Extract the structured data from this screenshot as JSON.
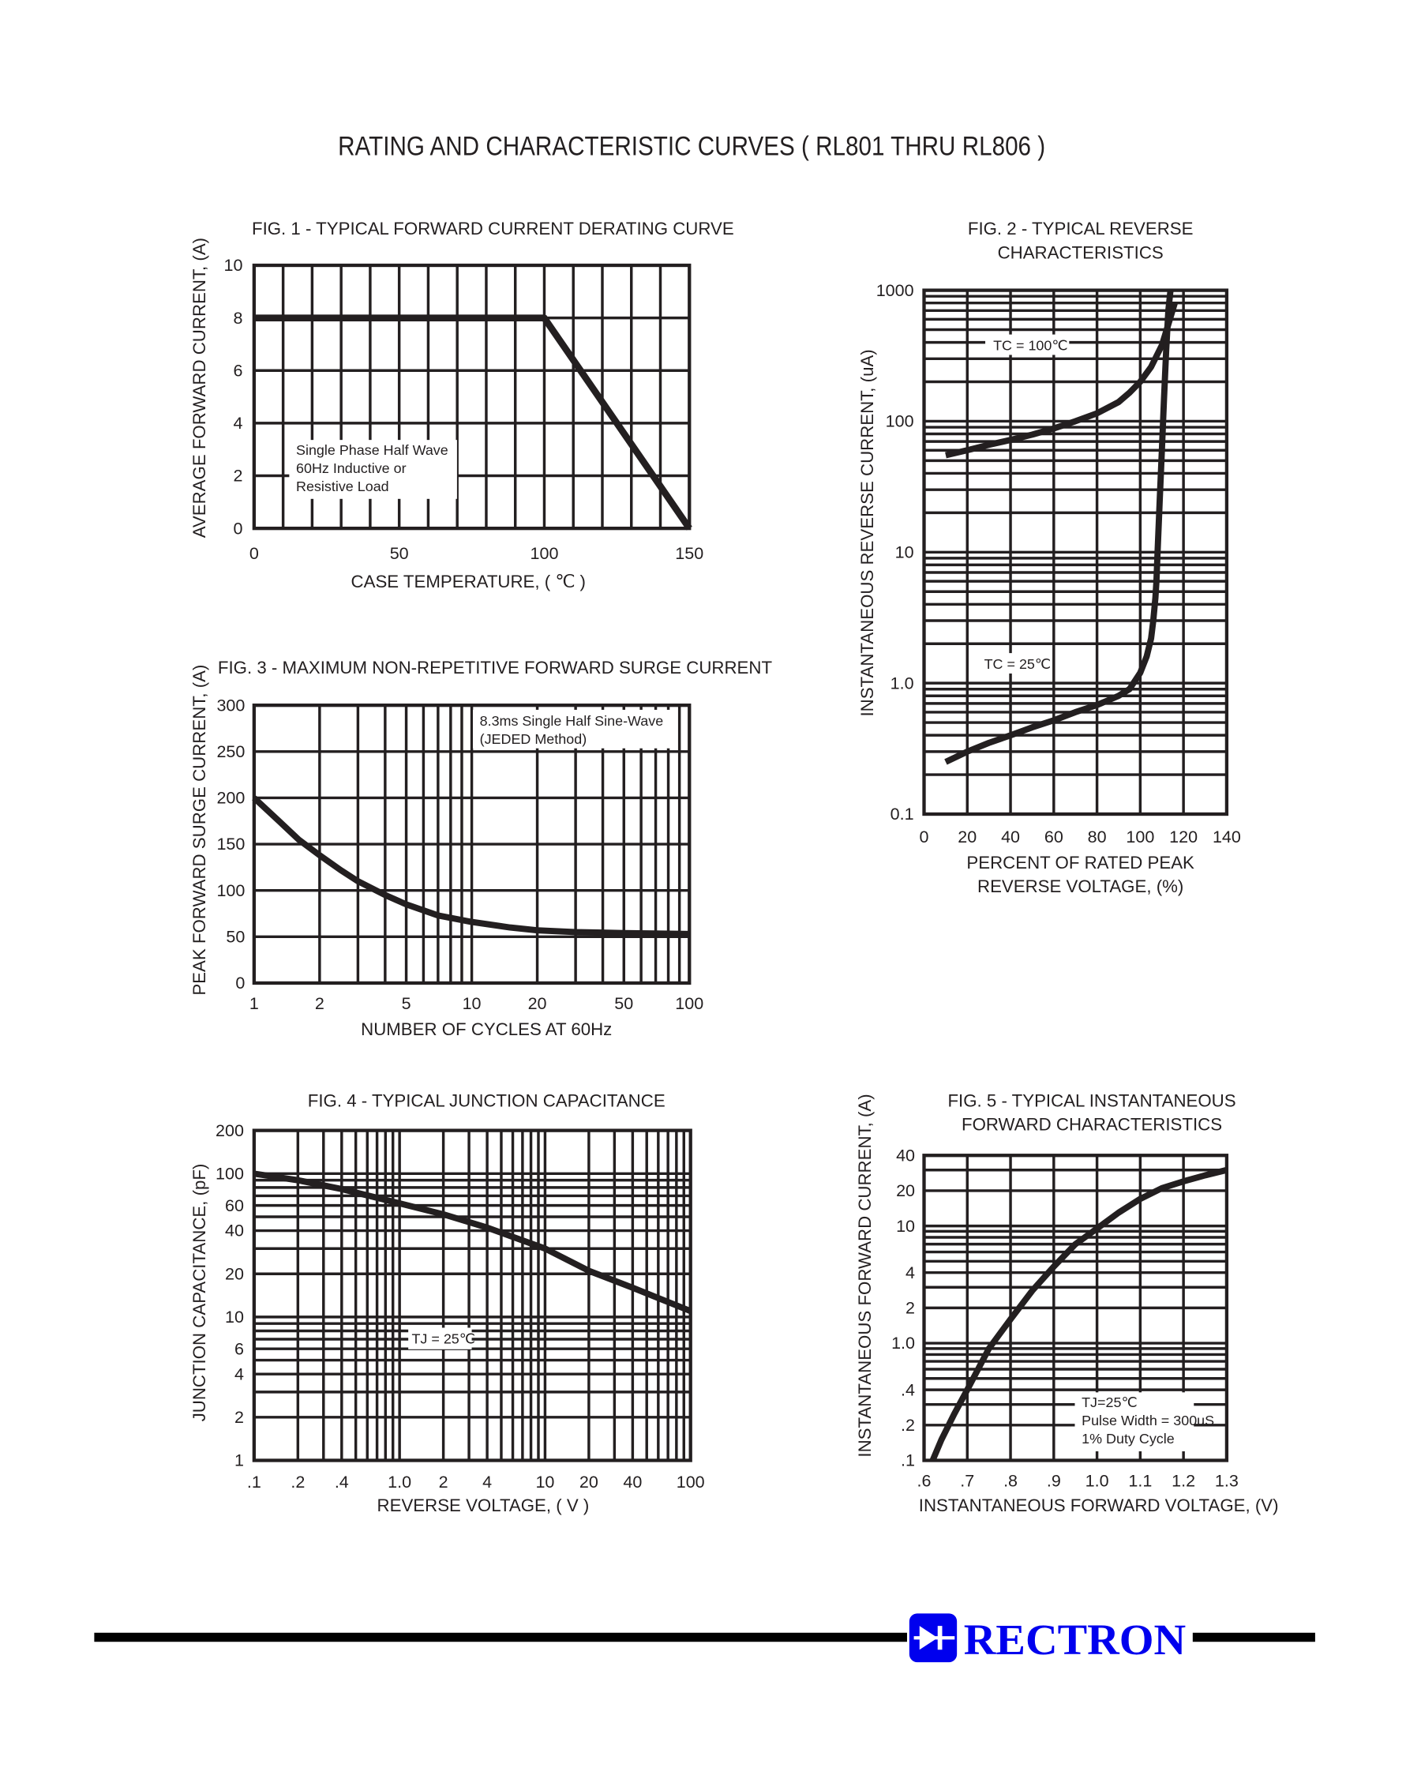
{
  "page": {
    "title": "RATING AND CHARACTERISTIC CURVES ( RL801 THRU RL806 )",
    "brand": "RECTRON",
    "brand_color": "#0000ee",
    "ink_color": "#231f20"
  },
  "chart_data": [
    {
      "id": "fig1",
      "type": "line",
      "title": [
        "FIG. 1 - TYPICAL FORWARD CURRENT DERATING CURVE"
      ],
      "xlabel": [
        "CASE TEMPERATURE, ( ℃ )"
      ],
      "ylabel": "AVERAGE FORWARD CURRENT, (A)",
      "xscale": "linear",
      "yscale": "linear",
      "xlim": [
        0,
        150
      ],
      "ylim": [
        0,
        10
      ],
      "grid": true,
      "x_gridlines": [
        10,
        20,
        30,
        40,
        50,
        60,
        70,
        80,
        90,
        100,
        110,
        120,
        130,
        140
      ],
      "y_gridlines": [
        2,
        4,
        6,
        8
      ],
      "xticks": [
        {
          "v": 0,
          "label": "0"
        },
        {
          "v": 50,
          "label": "50"
        },
        {
          "v": 100,
          "label": "100"
        },
        {
          "v": 150,
          "label": "150"
        }
      ],
      "yticks": [
        {
          "v": 0,
          "label": "0"
        },
        {
          "v": 2,
          "label": "2"
        },
        {
          "v": 4,
          "label": "4"
        },
        {
          "v": 6,
          "label": "6"
        },
        {
          "v": 8,
          "label": "8"
        },
        {
          "v": 10,
          "label": "10"
        }
      ],
      "annotations": [
        [
          "Single Phase Half Wave",
          "60Hz Inductive or",
          "Resistive Load"
        ]
      ],
      "series": [
        {
          "x": [
            0,
            100,
            150
          ],
          "y": [
            8,
            8,
            0
          ]
        }
      ]
    },
    {
      "id": "fig2",
      "type": "line",
      "title": [
        "FIG. 2 - TYPICAL REVERSE",
        "CHARACTERISTICS"
      ],
      "xlabel": [
        "PERCENT OF RATED PEAK",
        "REVERSE VOLTAGE, (%)"
      ],
      "ylabel": "INSTANTANEOUS REVERSE CURRENT, (uA)",
      "xscale": "linear",
      "yscale": "log",
      "xlim": [
        0,
        140
      ],
      "ylim": [
        0.1,
        1000
      ],
      "grid": true,
      "x_gridlines": [
        20,
        40,
        60,
        80,
        100,
        120
      ],
      "y_gridlines": "log-minor",
      "xticks": [
        {
          "v": 0,
          "label": "0"
        },
        {
          "v": 20,
          "label": "20"
        },
        {
          "v": 40,
          "label": "40"
        },
        {
          "v": 60,
          "label": "60"
        },
        {
          "v": 80,
          "label": "80"
        },
        {
          "v": 100,
          "label": "100"
        },
        {
          "v": 120,
          "label": "120"
        },
        {
          "v": 140,
          "label": "140"
        }
      ],
      "yticks": [
        {
          "v": 0.1,
          "label": "0.1"
        },
        {
          "v": 1,
          "label": "1.0"
        },
        {
          "v": 10,
          "label": "10"
        },
        {
          "v": 100,
          "label": "100"
        },
        {
          "v": 1000,
          "label": "1000"
        }
      ],
      "annotations": [
        [
          "TC = 100℃"
        ],
        [
          "TC = 25℃"
        ]
      ],
      "series": [
        {
          "x": [
            10,
            20,
            30,
            40,
            50,
            60,
            70,
            80,
            90,
            95,
            100,
            105,
            110,
            113,
            116
          ],
          "y": [
            55,
            60,
            66,
            72,
            79,
            88,
            100,
            115,
            140,
            165,
            200,
            260,
            380,
            550,
            800
          ]
        },
        {
          "x": [
            10,
            20,
            30,
            40,
            50,
            60,
            70,
            80,
            90,
            95,
            100,
            103,
            105,
            106,
            107,
            107.5,
            108,
            109,
            110,
            111,
            112,
            113,
            114
          ],
          "y": [
            0.25,
            0.3,
            0.35,
            0.4,
            0.46,
            0.52,
            0.6,
            0.68,
            0.8,
            0.9,
            1.2,
            1.6,
            2.2,
            3,
            4.5,
            6,
            10,
            25,
            60,
            150,
            350,
            700,
            1000
          ]
        }
      ]
    },
    {
      "id": "fig3",
      "type": "line",
      "title": [
        "FIG. 3 - MAXIMUM NON-REPETITIVE FORWARD SURGE CURRENT"
      ],
      "xlabel": [
        "NUMBER OF CYCLES AT 60Hz"
      ],
      "ylabel": "PEAK FORWARD SURGE CURRENT, (A)",
      "xscale": "log",
      "yscale": "linear",
      "xlim": [
        1,
        100
      ],
      "ylim": [
        0,
        300
      ],
      "grid": true,
      "x_gridlines": [
        2,
        3,
        4,
        5,
        6,
        7,
        8,
        9,
        10,
        20,
        30,
        40,
        50,
        60,
        70,
        80,
        90
      ],
      "y_gridlines": [
        50,
        100,
        150,
        200,
        250
      ],
      "xticks": [
        {
          "v": 1,
          "label": "1"
        },
        {
          "v": 2,
          "label": "2"
        },
        {
          "v": 5,
          "label": "5"
        },
        {
          "v": 10,
          "label": "10"
        },
        {
          "v": 20,
          "label": "20"
        },
        {
          "v": 50,
          "label": "50"
        },
        {
          "v": 100,
          "label": "100"
        }
      ],
      "yticks": [
        {
          "v": 0,
          "label": "0"
        },
        {
          "v": 50,
          "label": "50"
        },
        {
          "v": 100,
          "label": "100"
        },
        {
          "v": 150,
          "label": "150"
        },
        {
          "v": 200,
          "label": "200"
        },
        {
          "v": 250,
          "label": "250"
        },
        {
          "v": 300,
          "label": "300"
        }
      ],
      "annotations": [
        [
          "8.3ms Single Half Sine-Wave",
          "(JEDED Method)"
        ]
      ],
      "series": [
        {
          "x": [
            1,
            1.3,
            1.6,
            2,
            2.5,
            3,
            4,
            5,
            7,
            10,
            15,
            20,
            30,
            50,
            100
          ],
          "y": [
            200,
            175,
            155,
            138,
            122,
            110,
            95,
            85,
            73,
            66,
            60,
            57,
            55,
            54,
            53
          ]
        }
      ]
    },
    {
      "id": "fig4",
      "type": "line",
      "title": [
        "FIG. 4 - TYPICAL JUNCTION CAPACITANCE"
      ],
      "xlabel": [
        "REVERSE VOLTAGE, ( V )"
      ],
      "ylabel": "JUNCTION CAPACITANCE, (pF)",
      "xscale": "log",
      "yscale": "log",
      "xlim": [
        0.1,
        100
      ],
      "ylim": [
        1,
        200
      ],
      "grid": true,
      "x_gridlines": "log-minor",
      "y_gridlines": "log-minor",
      "xticks": [
        {
          "v": 0.1,
          "label": ".1"
        },
        {
          "v": 0.2,
          "label": ".2"
        },
        {
          "v": 0.4,
          "label": ".4"
        },
        {
          "v": 1,
          "label": "1.0"
        },
        {
          "v": 2,
          "label": "2"
        },
        {
          "v": 4,
          "label": "4"
        },
        {
          "v": 10,
          "label": "10"
        },
        {
          "v": 20,
          "label": "20"
        },
        {
          "v": 40,
          "label": "40"
        },
        {
          "v": 100,
          "label": "100"
        }
      ],
      "yticks": [
        {
          "v": 1,
          "label": "1"
        },
        {
          "v": 2,
          "label": "2"
        },
        {
          "v": 4,
          "label": "4"
        },
        {
          "v": 6,
          "label": "6"
        },
        {
          "v": 10,
          "label": "10"
        },
        {
          "v": 20,
          "label": "20"
        },
        {
          "v": 40,
          "label": "40"
        },
        {
          "v": 60,
          "label": "60"
        },
        {
          "v": 100,
          "label": "100"
        },
        {
          "v": 200,
          "label": "200"
        }
      ],
      "annotations": [
        [
          "TJ = 25℃"
        ]
      ],
      "series": [
        {
          "x": [
            0.1,
            0.2,
            0.4,
            1,
            2,
            4,
            10,
            20,
            40,
            100
          ],
          "y": [
            100,
            90,
            78,
            62,
            52,
            42,
            30,
            21,
            16,
            11
          ]
        }
      ]
    },
    {
      "id": "fig5",
      "type": "line",
      "title": [
        "FIG. 5 - TYPICAL INSTANTANEOUS",
        "FORWARD CHARACTERISTICS"
      ],
      "xlabel": [
        "INSTANTANEOUS FORWARD VOLTAGE, (V)"
      ],
      "ylabel": "INSTANTANEOUS FORWARD CURRENT, (A)",
      "xscale": "linear",
      "yscale": "log",
      "xlim": [
        0.6,
        1.3
      ],
      "ylim": [
        0.1,
        40
      ],
      "grid": true,
      "x_gridlines": [
        0.7,
        0.8,
        0.9,
        1.0,
        1.1,
        1.2
      ],
      "y_gridlines": "log-minor",
      "xticks": [
        {
          "v": 0.6,
          "label": ".6"
        },
        {
          "v": 0.7,
          "label": ".7"
        },
        {
          "v": 0.8,
          "label": ".8"
        },
        {
          "v": 0.9,
          "label": ".9"
        },
        {
          "v": 1.0,
          "label": "1.0"
        },
        {
          "v": 1.1,
          "label": "1.1"
        },
        {
          "v": 1.2,
          "label": "1.2"
        },
        {
          "v": 1.3,
          "label": "1.3"
        }
      ],
      "yticks": [
        {
          "v": 0.1,
          "label": ".1"
        },
        {
          "v": 0.2,
          "label": ".2"
        },
        {
          "v": 0.4,
          "label": ".4"
        },
        {
          "v": 1,
          "label": "1.0"
        },
        {
          "v": 2,
          "label": "2"
        },
        {
          "v": 4,
          "label": "4"
        },
        {
          "v": 10,
          "label": "10"
        },
        {
          "v": 20,
          "label": "20"
        },
        {
          "v": 40,
          "label": "40"
        }
      ],
      "annotations": [
        [
          "TJ=25℃",
          "Pulse Width = 300uS",
          "1% Duty Cycle"
        ]
      ],
      "series": [
        {
          "x": [
            0.62,
            0.64,
            0.67,
            0.7,
            0.75,
            0.8,
            0.85,
            0.9,
            0.95,
            1.0,
            1.05,
            1.1,
            1.15,
            1.2,
            1.25,
            1.3
          ],
          "y": [
            0.1,
            0.15,
            0.25,
            0.4,
            0.9,
            1.6,
            2.8,
            4.5,
            7,
            9.5,
            13,
            17,
            21,
            24,
            27,
            30
          ]
        }
      ]
    }
  ]
}
